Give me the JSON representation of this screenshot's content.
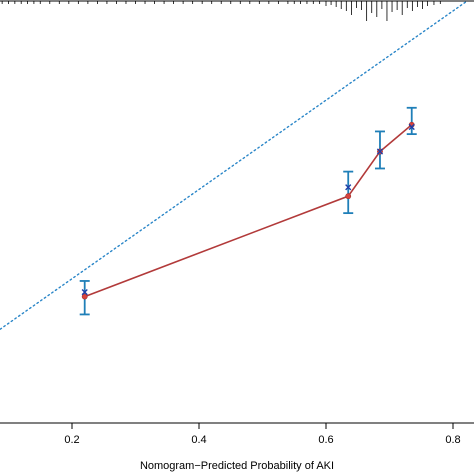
{
  "chart_data": {
    "type": "scatter",
    "title": "",
    "xlabel": "Nomogram−Predicted Probability of AKI",
    "ylabel": "",
    "xlim": [
      0.0,
      0.82
    ],
    "ylim": [
      0.12,
      0.94
    ],
    "x_ticks": [
      0.2,
      0.4,
      0.6,
      0.8
    ],
    "x_tick_labels": [
      "0.2",
      "0.4",
      "0.6",
      "0.8"
    ],
    "grid": false,
    "series": [
      {
        "style": "ideal-reference-line",
        "color": "#2a86c8",
        "x": [
          0.0,
          0.82
        ],
        "y": [
          0.12,
          0.94
        ]
      },
      {
        "style": "calibration-curve",
        "color": "#b23a3a",
        "marker_color": "#d9433e",
        "x": [
          0.22,
          0.635,
          0.685,
          0.735
        ],
        "y": [
          0.28,
          0.505,
          0.605,
          0.665
        ]
      },
      {
        "style": "observed-means",
        "color": "#1f3fa8",
        "x": [
          0.22,
          0.635,
          0.685,
          0.735
        ],
        "y": [
          0.29,
          0.525,
          0.605,
          0.66
        ]
      },
      {
        "style": "error-bars",
        "color": "#1f7fb8",
        "x": [
          0.22,
          0.635,
          0.685,
          0.735
        ],
        "lower": [
          0.24,
          0.467,
          0.567,
          0.644
        ],
        "upper": [
          0.315,
          0.56,
          0.65,
          0.703
        ]
      }
    ],
    "rug_x": [
      0.0,
      0.012,
      0.02,
      0.03,
      0.04,
      0.05,
      0.06,
      0.07,
      0.08,
      0.09,
      0.1,
      0.11,
      0.12,
      0.13,
      0.14,
      0.15,
      0.165,
      0.18,
      0.195,
      0.21,
      0.225,
      0.24,
      0.255,
      0.27,
      0.285,
      0.3,
      0.315,
      0.33,
      0.345,
      0.36,
      0.375,
      0.39,
      0.405,
      0.42,
      0.435,
      0.45,
      0.465,
      0.48,
      0.495,
      0.51,
      0.525,
      0.54,
      0.55,
      0.56,
      0.57,
      0.58,
      0.59,
      0.6,
      0.608,
      0.616,
      0.624,
      0.632,
      0.64,
      0.648,
      0.656,
      0.664,
      0.672,
      0.68,
      0.688,
      0.696,
      0.704,
      0.712,
      0.72,
      0.728,
      0.736,
      0.744,
      0.752,
      0.76,
      0.77,
      0.78
    ],
    "rug_len": [
      3,
      3,
      3,
      3,
      3,
      3,
      3,
      3,
      3,
      3,
      3,
      3,
      3,
      3,
      3,
      3,
      3,
      3,
      3,
      3,
      3,
      3,
      3,
      3,
      3,
      3,
      3,
      3,
      3,
      3,
      3,
      3,
      3,
      3,
      3,
      3,
      3,
      3,
      3,
      3,
      3,
      3,
      3,
      3,
      3,
      3,
      3,
      5,
      4,
      6,
      8,
      10,
      14,
      7,
      9,
      20,
      12,
      16,
      8,
      20,
      11,
      9,
      14,
      7,
      10,
      6,
      8,
      5,
      4,
      3
    ]
  }
}
